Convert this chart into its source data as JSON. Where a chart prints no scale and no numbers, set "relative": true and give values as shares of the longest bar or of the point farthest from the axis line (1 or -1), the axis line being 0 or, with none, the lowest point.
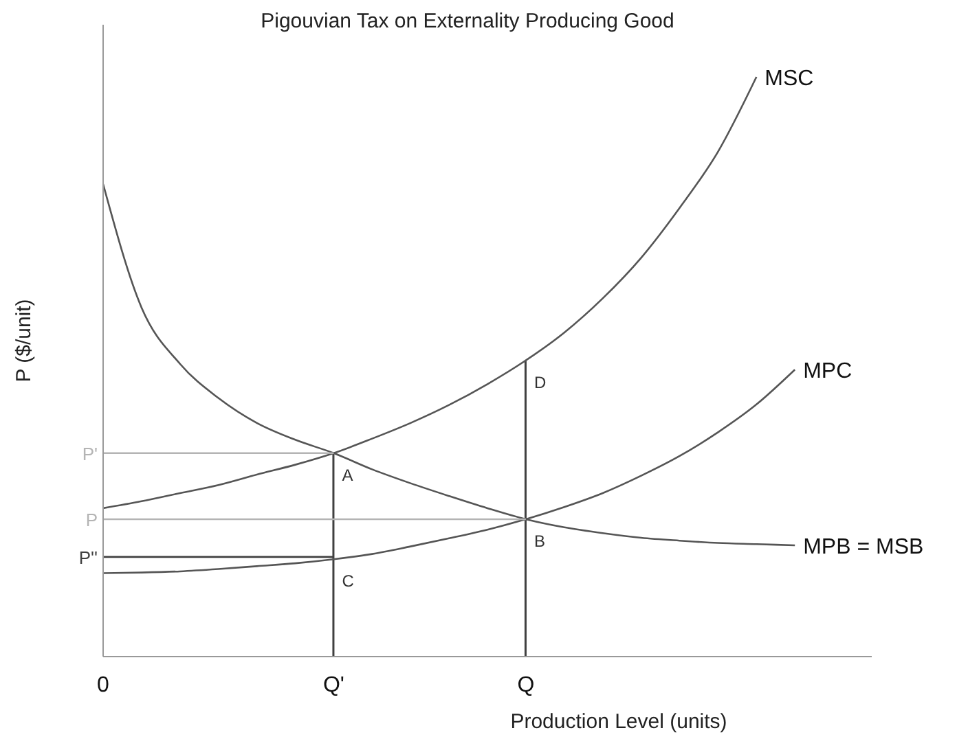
{
  "chart_data": {
    "type": "line",
    "title": "Pigouvian Tax on Externality Producing Good",
    "xlabel": "Production Level (units)",
    "ylabel": "P ($/unit)",
    "relative": true,
    "categories": [
      "0",
      null,
      null,
      null,
      null,
      null,
      "Q'",
      null,
      null,
      null,
      null,
      "Q",
      null,
      null,
      null,
      null,
      null,
      null,
      null,
      null,
      null
    ],
    "marker": "none",
    "line_style": "solid",
    "series": [
      {
        "name": "MSC",
        "color": "#555555",
        "values": [
          0.256,
          0.268,
          0.282,
          0.296,
          0.314,
          0.331,
          0.351,
          0.376,
          0.403,
          0.434,
          0.47,
          0.511,
          0.559,
          0.618,
          0.688,
          0.774,
          0.871,
          1,
          null,
          null,
          null
        ]
      },
      {
        "name": "MPC",
        "color": "#555555",
        "values": [
          0.144,
          0.145,
          0.147,
          0.151,
          0.156,
          0.161,
          0.168,
          0.177,
          0.19,
          0.204,
          0.219,
          0.237,
          0.258,
          0.282,
          0.312,
          0.346,
          0.387,
          0.435,
          0.495,
          null,
          null
        ]
      },
      {
        "name": "MPB = MSB",
        "color": "#555555",
        "values": [
          0.815,
          0.602,
          0.505,
          0.446,
          0.403,
          0.374,
          0.351,
          0.323,
          0.299,
          0.277,
          0.256,
          0.237,
          0.223,
          0.213,
          0.205,
          0.2,
          0.196,
          0.194,
          0.192,
          null,
          null
        ]
      },
      {
        "name": "P'",
        "color": "#b4b4b4",
        "values": [
          0.351,
          0.351,
          0.351,
          0.351,
          0.351,
          0.351,
          0.351,
          null,
          null,
          null,
          null,
          null,
          null,
          null,
          null,
          null,
          null,
          null,
          null,
          null,
          null
        ]
      },
      {
        "name": "P",
        "color": "#b4b4b4",
        "values": [
          0.237,
          0.237,
          0.237,
          0.237,
          0.237,
          0.237,
          0.237,
          0.237,
          0.237,
          0.237,
          0.237,
          0.237,
          null,
          null,
          null,
          null,
          null,
          null,
          null,
          null,
          null
        ]
      },
      {
        "name": "P''",
        "color": "#404040",
        "values": [
          0.172,
          0.172,
          0.172,
          0.172,
          0.172,
          0.172,
          0.172,
          null,
          null,
          null,
          null,
          null,
          null,
          null,
          null,
          null,
          null,
          null,
          null,
          null,
          null
        ]
      },
      {
        "type": "bar",
        "color": "#404040",
        "values": [
          null,
          null,
          null,
          null,
          null,
          null,
          0.351,
          null,
          null,
          null,
          null,
          0.511,
          null,
          null,
          null,
          null,
          null,
          null,
          null,
          null,
          null
        ]
      }
    ],
    "annotations": [
      {
        "text": "A",
        "x": "Q'",
        "y": 0.351
      },
      {
        "text": "B",
        "x": "Q",
        "y": 0.237
      },
      {
        "text": "C",
        "x": "Q'",
        "y": 0.168
      },
      {
        "text": "D",
        "x": "Q",
        "y": 0.511
      }
    ]
  }
}
